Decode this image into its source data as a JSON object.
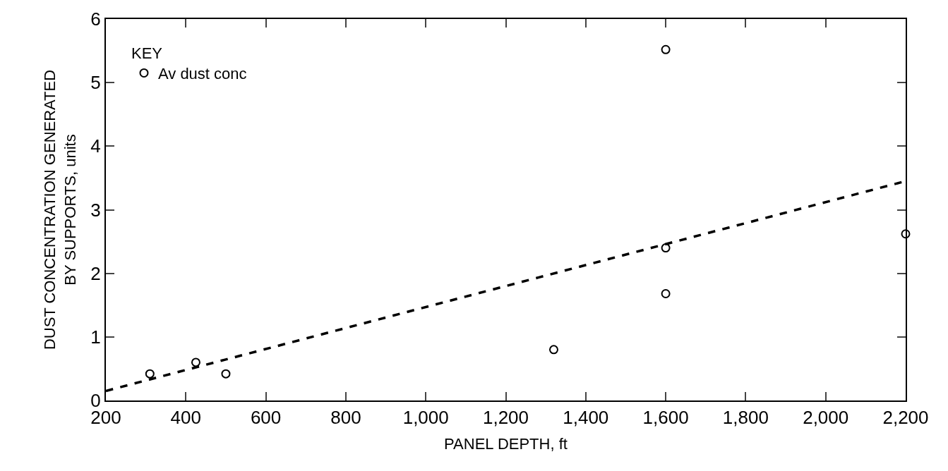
{
  "chart_data": {
    "type": "scatter",
    "xlabel": "PANEL DEPTH, ft",
    "ylabel": "DUST CONCENTRATION GENERATED\nBY SUPPORTS, units",
    "legend_title": "KEY",
    "legend": "top left",
    "grid": false,
    "xlim": [
      200,
      2200
    ],
    "xticks": [
      200,
      400,
      600,
      800,
      {
        "value": 1000,
        "label": "1,000"
      },
      {
        "value": 1200,
        "label": "1,200"
      },
      {
        "value": 1400,
        "label": "1,400"
      },
      {
        "value": 1600,
        "label": "1,600"
      },
      {
        "value": 1800,
        "label": "1,800"
      },
      {
        "value": 2000,
        "label": "2,000"
      },
      {
        "value": 2200,
        "label": "2,200"
      }
    ],
    "ylim": [
      0,
      6
    ],
    "yticks": [
      0,
      1,
      2,
      3,
      4,
      5,
      6
    ],
    "series": [
      {
        "name": "Av dust conc",
        "marker": "circle",
        "color": "#000000",
        "x": [
          310,
          425,
          500,
          1320,
          1600,
          1600,
          1600,
          2200
        ],
        "values": [
          0.42,
          0.6,
          0.42,
          0.8,
          5.52,
          2.4,
          1.68,
          2.62
        ]
      },
      {
        "type": "line",
        "line_style": "dashed",
        "marker": "none",
        "color": "#000000",
        "x": [
          200,
          2200
        ],
        "values": [
          0.15,
          3.45
        ]
      }
    ]
  }
}
